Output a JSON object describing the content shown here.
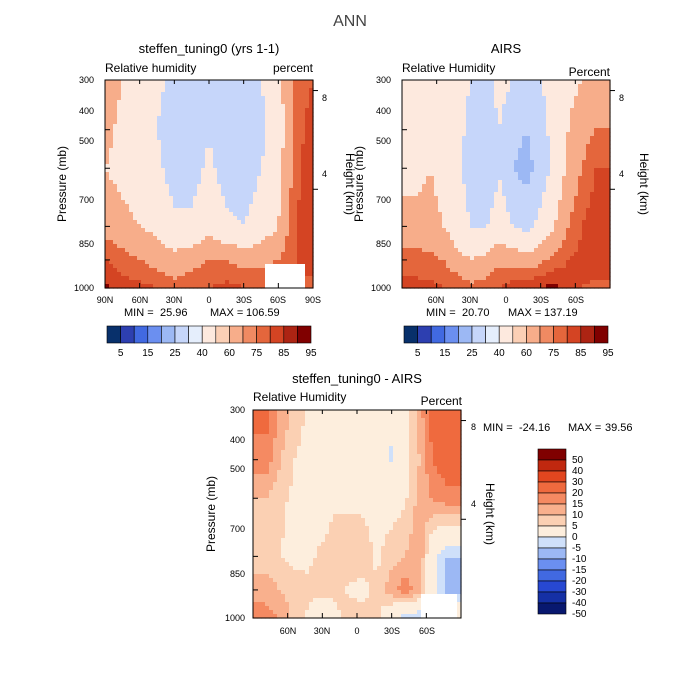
{
  "figure": {
    "title": "ANN"
  },
  "colors": {
    "fullfield": [
      "#08306b",
      "#2d3fb0",
      "#4169e1",
      "#6b8ff0",
      "#9cb8f4",
      "#c6d6fa",
      "#e5eefc",
      "#fde9de",
      "#fbcfb5",
      "#f7ad8a",
      "#f08a62",
      "#e4663c",
      "#d44423",
      "#ad2413",
      "#800000"
    ],
    "diff": [
      "#08186f",
      "#1530a5",
      "#2748d2",
      "#4169e1",
      "#6b8ff0",
      "#9cb8f4",
      "#cfe0fa",
      "#fdeedd",
      "#fbd0b3",
      "#f9b08d",
      "#f58a62",
      "#ef6a3e",
      "#e2461f",
      "#c0280f",
      "#800000"
    ]
  },
  "chart_data": [
    {
      "id": "model",
      "type": "heatmap",
      "title": "steffen_tuning0 (yrs 1-1)",
      "variable_label": "Relative humidity",
      "units_label": "percent",
      "ylabel": "Pressure (mb)",
      "ylabel_right": "Height (km)",
      "x_ticks": [
        "90N",
        "60N",
        "30N",
        "0",
        "30S",
        "60S",
        "90S"
      ],
      "y_ticks": [
        "300",
        "400",
        "500",
        "700",
        "850",
        "1000"
      ],
      "height_ticks": [
        "8",
        "4"
      ],
      "min_label": "MIN =",
      "min_value": "25.96",
      "max_label": "MAX =",
      "max_value": "106.59",
      "colorbar_labels": [
        "5",
        "15",
        "25",
        "40",
        "60",
        "75",
        "85",
        "95"
      ],
      "latitudes": [
        90,
        75,
        60,
        45,
        30,
        15,
        0,
        -15,
        -30,
        -45,
        -60,
        -75,
        -90
      ],
      "pressures": [
        300,
        400,
        500,
        700,
        850,
        1000
      ],
      "values": [
        [
          70,
          60,
          55,
          45,
          35,
          30,
          40,
          35,
          30,
          40,
          55,
          80,
          85
        ],
        [
          65,
          55,
          50,
          40,
          28,
          25,
          38,
          28,
          25,
          35,
          50,
          80,
          90
        ],
        [
          60,
          55,
          50,
          45,
          30,
          30,
          45,
          30,
          28,
          40,
          55,
          80,
          95
        ],
        [
          70,
          65,
          60,
          55,
          45,
          45,
          55,
          45,
          40,
          50,
          60,
          85,
          95
        ],
        [
          85,
          80,
          75,
          70,
          65,
          70,
          75,
          75,
          70,
          72,
          75,
          85,
          92
        ],
        [
          97,
          90,
          88,
          85,
          80,
          82,
          85,
          88,
          86,
          84,
          85,
          83,
          80
        ]
      ]
    },
    {
      "id": "airs",
      "type": "heatmap",
      "title": "AIRS",
      "variable_label": "Relative Humidity",
      "units_label": "Percent",
      "ylabel": "Pressure (mb)",
      "ylabel_right": "Height (km)",
      "x_ticks": [
        "60N",
        "30N",
        "0",
        "30S",
        "60S"
      ],
      "y_ticks": [
        "300",
        "400",
        "500",
        "700",
        "850",
        "1000"
      ],
      "height_ticks": [
        "8",
        "4"
      ],
      "min_label": "MIN =",
      "min_value": "20.70",
      "max_label": "MAX =",
      "max_value": "137.19",
      "colorbar_labels": [
        "5",
        "15",
        "25",
        "40",
        "60",
        "75",
        "85",
        "95"
      ],
      "latitudes": [
        78,
        66,
        54,
        42,
        30,
        18,
        6,
        -6,
        -18,
        -30,
        -42,
        -54,
        -66,
        -78
      ],
      "pressures": [
        300,
        400,
        500,
        700,
        850,
        1000
      ],
      "values": [
        [
          40,
          45,
          50,
          45,
          40,
          35,
          45,
          40,
          35,
          40,
          45,
          55,
          60,
          65
        ],
        [
          45,
          50,
          55,
          45,
          35,
          30,
          40,
          30,
          25,
          35,
          45,
          60,
          70,
          75
        ],
        [
          55,
          60,
          55,
          45,
          30,
          25,
          38,
          25,
          20,
          30,
          45,
          65,
          75,
          85
        ],
        [
          65,
          65,
          60,
          50,
          40,
          38,
          50,
          40,
          35,
          45,
          60,
          75,
          85,
          92
        ],
        [
          80,
          78,
          75,
          65,
          60,
          65,
          72,
          70,
          65,
          72,
          78,
          85,
          88,
          92
        ],
        [
          88,
          88,
          85,
          85,
          78,
          80,
          85,
          90,
          92,
          95,
          98,
          90,
          85,
          82
        ]
      ]
    },
    {
      "id": "diff",
      "type": "heatmap",
      "title": "steffen_tuning0 - AIRS",
      "variable_label": "Relative Humidity",
      "units_label": "Percent",
      "ylabel": "Pressure (mb)",
      "ylabel_right": "Height (km)",
      "x_ticks": [
        "60N",
        "30N",
        "0",
        "30S",
        "60S"
      ],
      "y_ticks": [
        "300",
        "400",
        "500",
        "700",
        "850",
        "1000"
      ],
      "height_ticks": [
        "8",
        "4"
      ],
      "min_label": "MIN =",
      "min_value": "-24.16",
      "max_label": "MAX =",
      "max_value": "39.56",
      "colorbar_labels": [
        "50",
        "40",
        "30",
        "20",
        "15",
        "10",
        "5",
        "0",
        "-5",
        "-10",
        "-15",
        "-20",
        "-30",
        "-40",
        "-50"
      ],
      "latitudes": [
        78,
        66,
        54,
        42,
        30,
        18,
        6,
        -6,
        -18,
        -30,
        -42,
        -54,
        -66,
        -78
      ],
      "pressures": [
        300,
        400,
        500,
        700,
        850,
        1000
      ],
      "values": [
        [
          22,
          14,
          8,
          4,
          2,
          3,
          3,
          4,
          5,
          -4,
          3,
          12,
          25,
          28
        ],
        [
          18,
          10,
          5,
          3,
          2,
          2,
          3,
          3,
          2,
          -6,
          2,
          10,
          20,
          24
        ],
        [
          10,
          6,
          4,
          2,
          2,
          4,
          4,
          4,
          3,
          2,
          4,
          12,
          16,
          18
        ],
        [
          8,
          5,
          3,
          4,
          6,
          8,
          8,
          7,
          4,
          8,
          10,
          15,
          -4,
          -10
        ],
        [
          12,
          10,
          8,
          6,
          8,
          6,
          4,
          4,
          6,
          14,
          18,
          12,
          -2,
          -12
        ],
        [
          18,
          14,
          8,
          4,
          -2,
          4,
          8,
          6,
          6,
          -4,
          -8,
          -10,
          -6,
          4
        ]
      ]
    }
  ]
}
